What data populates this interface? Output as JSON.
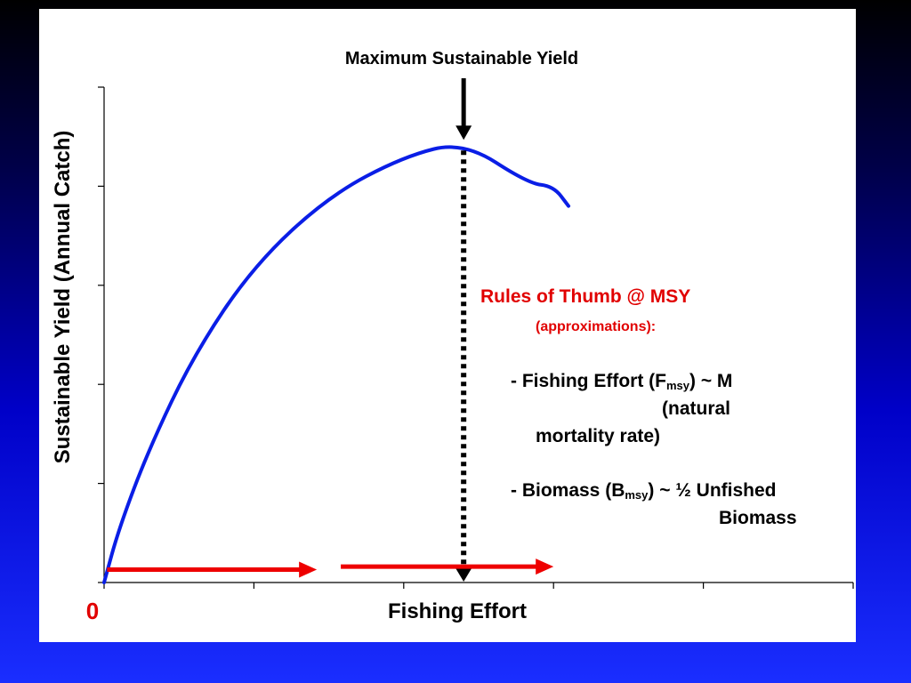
{
  "chart_data": {
    "type": "line",
    "title": "Maximum Sustainable Yield",
    "xlabel": "Fishing Effort",
    "ylabel": "Sustainable Yield (Annual Catch)",
    "origin_label": "0",
    "xlim": [
      0,
      5
    ],
    "ylim": [
      0,
      5
    ],
    "grid": false,
    "series": [
      {
        "color": "#0a1ee6",
        "x": [
          0,
          0.1,
          0.3,
          0.6,
          1.0,
          1.5,
          2.0,
          2.4,
          2.83,
          3.0,
          3.1
        ],
        "y": [
          0,
          0.55,
          1.35,
          2.3,
          3.2,
          3.9,
          4.3,
          4.45,
          4.03,
          4.0,
          3.8
        ]
      }
    ],
    "msy_marker": {
      "x": 2.4,
      "y": 4.45,
      "color": "#000000"
    },
    "effort_arrows": [
      {
        "from": 0.02,
        "to": 1.42,
        "y": 0.13,
        "color": "#ee0000"
      },
      {
        "from": 1.58,
        "to": 3.0,
        "y": 0.16,
        "color": "#ee0000"
      }
    ]
  },
  "rules": {
    "title": "Rules of Thumb @ MSY",
    "subtitle": "(approximations):",
    "effort_prefix": "- Fishing Effort (F",
    "effort_sub": "msy",
    "effort_suffix": ") ~ M",
    "effort_note_1": "(natural",
    "effort_note_2": "mortality rate)",
    "biomass_prefix": "- Biomass (B",
    "biomass_sub": "msy",
    "biomass_suffix": ") ~ ½ Unfished",
    "biomass_note": "Biomass"
  },
  "colors": {
    "curve": "#0a1ee6",
    "arrows": "#ee0000",
    "rules_heading": "#e10000"
  }
}
